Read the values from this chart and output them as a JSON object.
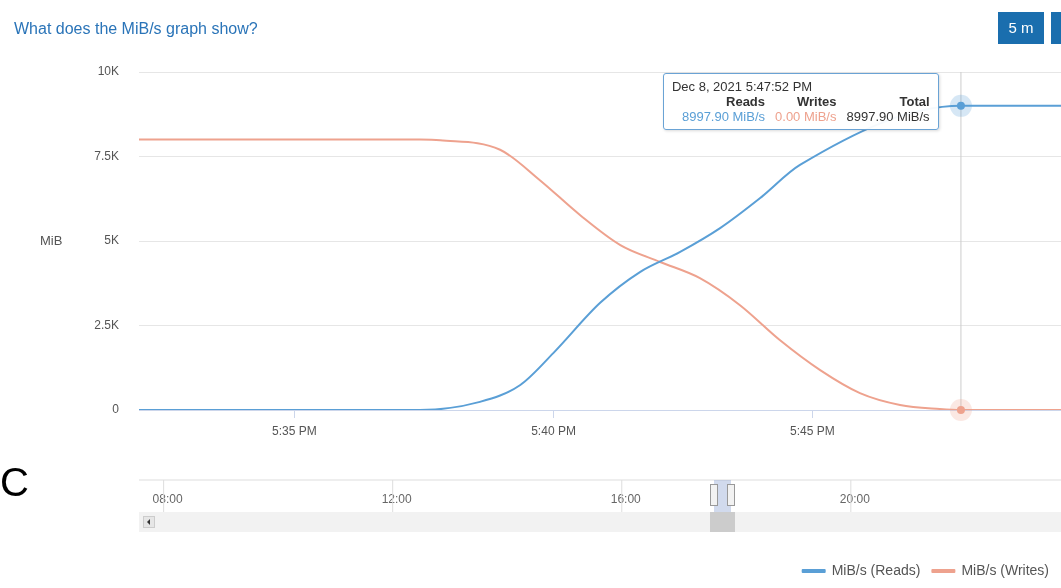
{
  "chart_data": {
    "type": "line",
    "title": "What does the MiB/s graph show?",
    "ylabel": "MiB",
    "xlim": [
      17.5333,
      17.83
    ],
    "xticks": [
      {
        "value": 17.5833,
        "label": "5:35 PM"
      },
      {
        "value": 17.6667,
        "label": "5:40 PM"
      },
      {
        "value": 17.75,
        "label": "5:45 PM"
      }
    ],
    "x2lim": [
      7.5,
      23.6
    ],
    "x2ticks": [
      {
        "value": 8,
        "label": "08:00"
      },
      {
        "value": 12,
        "label": "12:00"
      },
      {
        "value": 16,
        "label": "16:00"
      },
      {
        "value": 20,
        "label": "20:00"
      }
    ],
    "ylim": [
      0,
      10000
    ],
    "yticks": [
      {
        "value": 0,
        "label": "0"
      },
      {
        "value": 2500,
        "label": "2.5K"
      },
      {
        "value": 5000,
        "label": "5K"
      },
      {
        "value": 7500,
        "label": "7.5K"
      },
      {
        "value": 10000,
        "label": "10K"
      }
    ],
    "series": [
      {
        "name": "MiB/s (Reads)",
        "color": "#5a9fd6",
        "x": [
          17.5333,
          17.6237,
          17.643,
          17.656,
          17.6667,
          17.6817,
          17.6945,
          17.7073,
          17.7203,
          17.7332,
          17.746,
          17.7588,
          17.7718,
          17.7847,
          17.7978,
          17.83
        ],
        "values": [
          0,
          0,
          240,
          740,
          1690,
          3170,
          4080,
          4670,
          5380,
          6270,
          7250,
          null,
          null,
          null,
          8997.9,
          9000
        ]
      },
      {
        "name": "MiB/s (Writes)",
        "color": "#eea28e",
        "x": [
          17.5333,
          17.6237,
          17.6302,
          17.6495,
          17.6623,
          17.6752,
          17.6882,
          17.701,
          17.7138,
          17.7267,
          17.7395,
          17.7525,
          17.7653,
          17.7782,
          17.791,
          17.7978,
          17.83
        ],
        "values": [
          8000,
          8000,
          7980,
          7700,
          6800,
          5770,
          4880,
          4380,
          3900,
          3100,
          2070,
          1180,
          500,
          150,
          30,
          0,
          0
        ]
      }
    ],
    "ref_lines": [
      {
        "axis": "x",
        "value": 17.7978,
        "color": "#cccccc"
      }
    ],
    "annotations": [
      "Dec 8, 2021 5:47:52 PM",
      "Reads",
      "Writes",
      "Total",
      "8997.90 MiB/s",
      "0.00 MiB/s",
      "8997.90 MiB/s",
      "5 m",
      "C"
    ],
    "grid": "y",
    "legend": "bottom right",
    "marker": "none",
    "line_style": "solid"
  }
}
